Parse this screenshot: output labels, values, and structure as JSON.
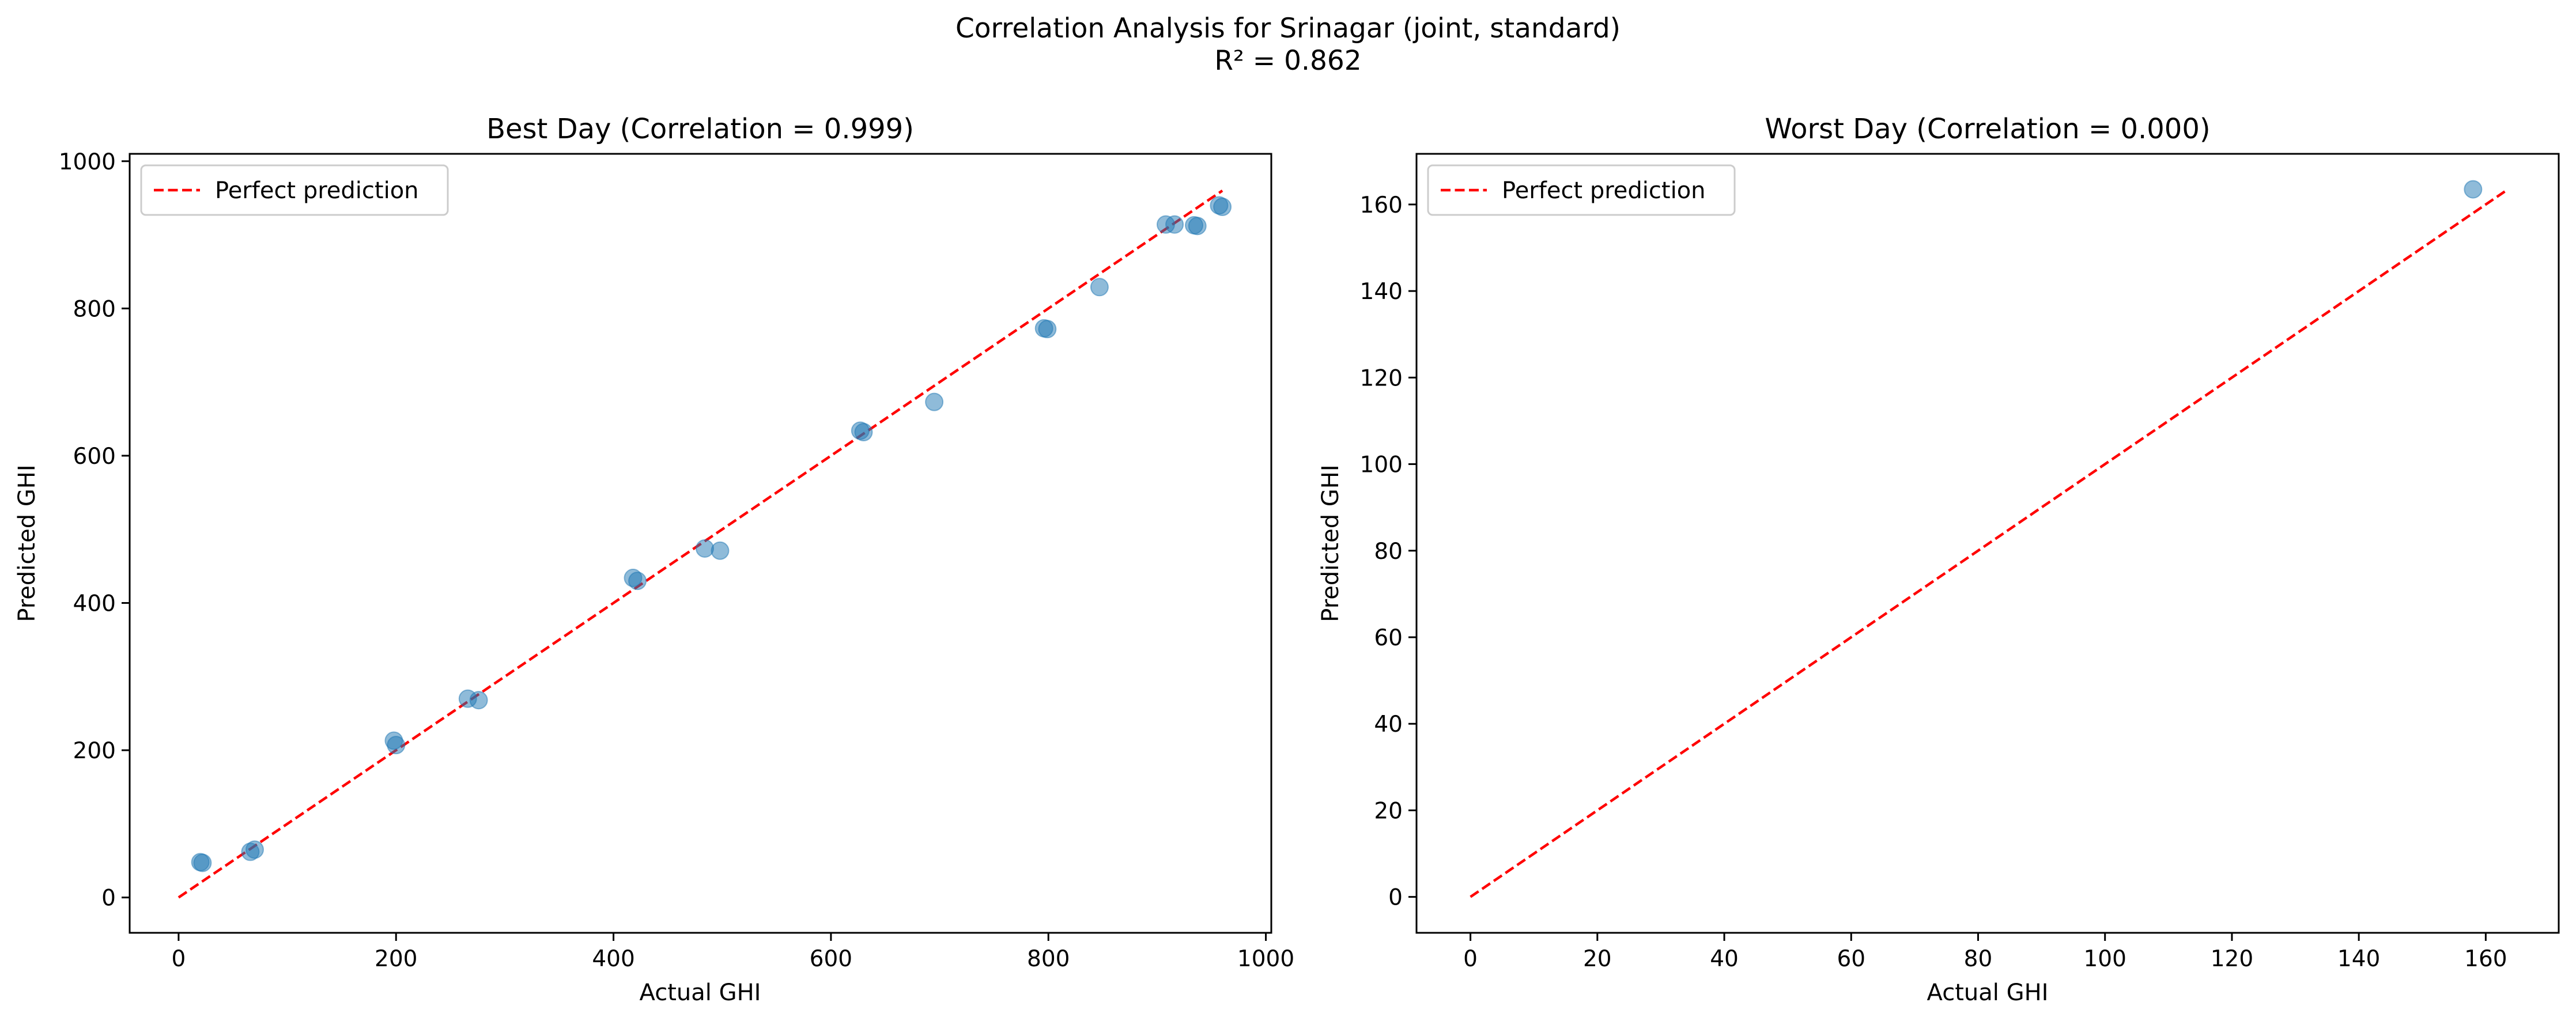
{
  "figure": {
    "title": "Correlation Analysis for Srinagar (joint, standard)",
    "subtitle": "R² = 0.862"
  },
  "colors": {
    "scatter": "#1f77b4",
    "reference_line": "#ff0000",
    "axes": "#000000",
    "background": "#ffffff"
  },
  "chart_data": [
    {
      "type": "scatter",
      "title": "Best Day (Correlation = 0.999)",
      "xlabel": "Actual GHI",
      "ylabel": "Predicted GHI",
      "xlim": [
        -45,
        1005
      ],
      "ylim": [
        -48,
        1010
      ],
      "xticks": [
        0,
        200,
        400,
        600,
        800,
        1000
      ],
      "yticks": [
        0,
        200,
        400,
        600,
        800,
        1000
      ],
      "grid": false,
      "legend": {
        "position": "top-left",
        "entries": [
          "Perfect prediction"
        ]
      },
      "reference_line": {
        "name": "Perfect prediction",
        "x": [
          0,
          960
        ],
        "y": [
          0,
          960
        ],
        "style": "dashed"
      },
      "points": [
        {
          "x": 20,
          "y": 48
        },
        {
          "x": 22,
          "y": 47
        },
        {
          "x": 66,
          "y": 62
        },
        {
          "x": 70,
          "y": 65
        },
        {
          "x": 198,
          "y": 213
        },
        {
          "x": 200,
          "y": 207
        },
        {
          "x": 266,
          "y": 270
        },
        {
          "x": 276,
          "y": 268
        },
        {
          "x": 418,
          "y": 434
        },
        {
          "x": 422,
          "y": 430
        },
        {
          "x": 484,
          "y": 474
        },
        {
          "x": 498,
          "y": 471
        },
        {
          "x": 627,
          "y": 634
        },
        {
          "x": 630,
          "y": 632
        },
        {
          "x": 695,
          "y": 673
        },
        {
          "x": 796,
          "y": 773
        },
        {
          "x": 799,
          "y": 772
        },
        {
          "x": 847,
          "y": 829
        },
        {
          "x": 908,
          "y": 914
        },
        {
          "x": 916,
          "y": 914
        },
        {
          "x": 934,
          "y": 913
        },
        {
          "x": 937,
          "y": 912
        },
        {
          "x": 957,
          "y": 940
        },
        {
          "x": 960,
          "y": 938
        }
      ]
    },
    {
      "type": "scatter",
      "title": "Worst Day (Correlation = 0.000)",
      "xlabel": "Actual GHI",
      "ylabel": "Predicted GHI",
      "xlim": [
        -8.5,
        171.5
      ],
      "ylim": [
        -8.3,
        171.7
      ],
      "xticks": [
        0,
        20,
        40,
        60,
        80,
        100,
        120,
        140,
        160
      ],
      "yticks": [
        0,
        20,
        40,
        60,
        80,
        100,
        120,
        140,
        160
      ],
      "grid": false,
      "legend": {
        "position": "top-left",
        "entries": [
          "Perfect prediction"
        ]
      },
      "reference_line": {
        "name": "Perfect prediction",
        "x": [
          0,
          163
        ],
        "y": [
          0,
          163
        ],
        "style": "dashed"
      },
      "points": [
        {
          "x": 158,
          "y": 163.5
        }
      ]
    }
  ]
}
